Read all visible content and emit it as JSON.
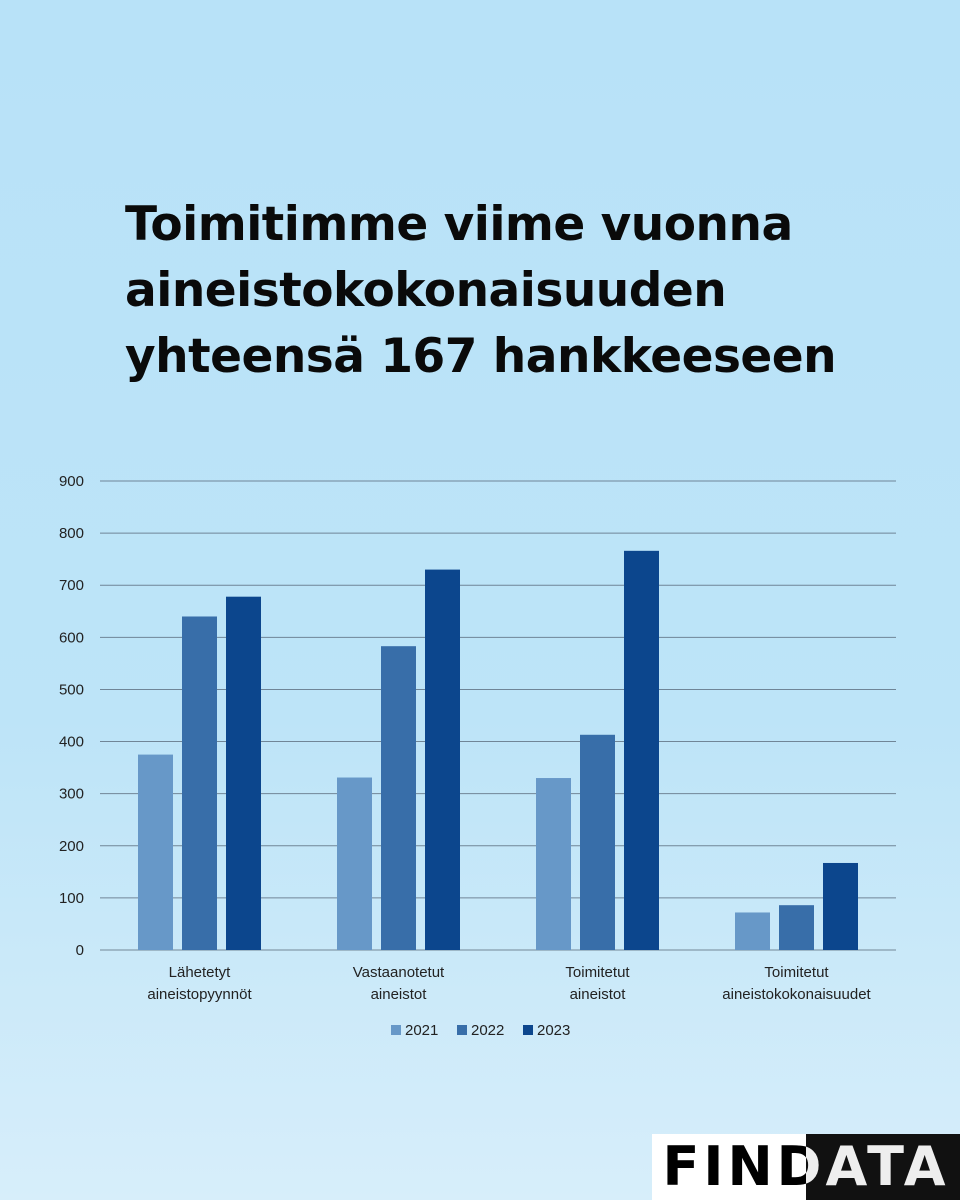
{
  "headline": [
    "Toimitimme viime vuonna",
    "aineistokokonaisuuden",
    "yhteensä 167 hankkeeseen"
  ],
  "logo_text": "FINDATA",
  "colors": {
    "series": [
      "#6798c8",
      "#386ea9",
      "#0c468d"
    ],
    "grid": "#556677",
    "text": "#222222"
  },
  "chart_data": {
    "type": "bar",
    "categories": [
      [
        "Lähetetyt",
        "aineistopyynnöt"
      ],
      [
        "Vastaanotetut",
        "aineistot"
      ],
      [
        "Toimitetut",
        "aineistot"
      ],
      [
        "Toimitetut",
        "aineistokokonaisuudet"
      ]
    ],
    "series": [
      {
        "name": "2021",
        "values": [
          375,
          331,
          330,
          72
        ]
      },
      {
        "name": "2022",
        "values": [
          640,
          583,
          413,
          86
        ]
      },
      {
        "name": "2023",
        "values": [
          678,
          730,
          766,
          167
        ]
      }
    ],
    "ylim": [
      0,
      900
    ],
    "yticks": [
      0,
      100,
      200,
      300,
      400,
      500,
      600,
      700,
      800,
      900
    ],
    "grid": true,
    "legend": "bottom"
  }
}
